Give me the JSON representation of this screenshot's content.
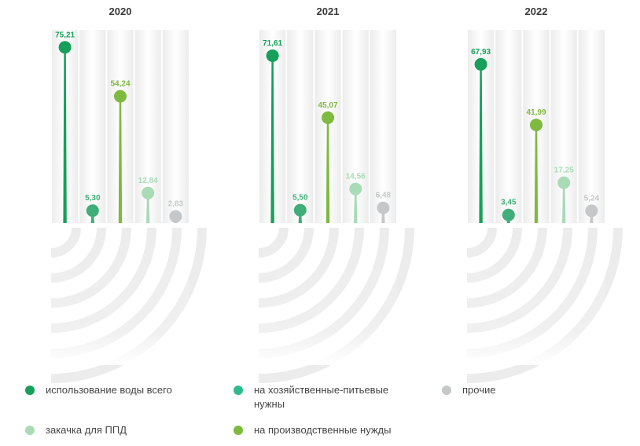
{
  "chart_data": {
    "type": "lollipop",
    "title": "",
    "ylim": [
      0,
      80
    ],
    "categories": [
      "2020",
      "2021",
      "2022"
    ],
    "series": [
      {
        "name": "использование воды всего",
        "color": "#16a05a",
        "labels": [
          "75,21",
          "71,61",
          "67,93"
        ],
        "values": [
          75.21,
          71.61,
          67.93
        ]
      },
      {
        "name": "на хозяйственные-питьевые нужны",
        "color": "#3fae78",
        "labels": [
          "5,30",
          "5,50",
          "3,45"
        ],
        "values": [
          5.3,
          5.5,
          3.45
        ]
      },
      {
        "name": "на производственные нужды",
        "color": "#7dba3f",
        "labels": [
          "54,24",
          "45,07",
          "41,99"
        ],
        "values": [
          54.24,
          45.07,
          41.99
        ]
      },
      {
        "name": "закачка для ППД",
        "color": "#a9dbb6",
        "labels": [
          "12,84",
          "14,56",
          "17,25"
        ],
        "values": [
          12.84,
          14.56,
          17.25
        ]
      },
      {
        "name": "прочие",
        "color": "#c4c8ca",
        "labels": [
          "2,83",
          "6,48",
          "5,24"
        ],
        "values": [
          2.83,
          6.48,
          5.24
        ]
      }
    ]
  },
  "legend": {
    "items": [
      {
        "label": "использование воды всего",
        "color": "#16a05a"
      },
      {
        "label": "на хозяйственные-питьевые нужны",
        "color": "#2dbb8a"
      },
      {
        "label": "прочие",
        "color": "#c4c8ca"
      },
      {
        "label": "закачка для ППД",
        "color": "#a9dbb6"
      },
      {
        "label": "на производственные нужды",
        "color": "#7dba3f"
      }
    ]
  }
}
